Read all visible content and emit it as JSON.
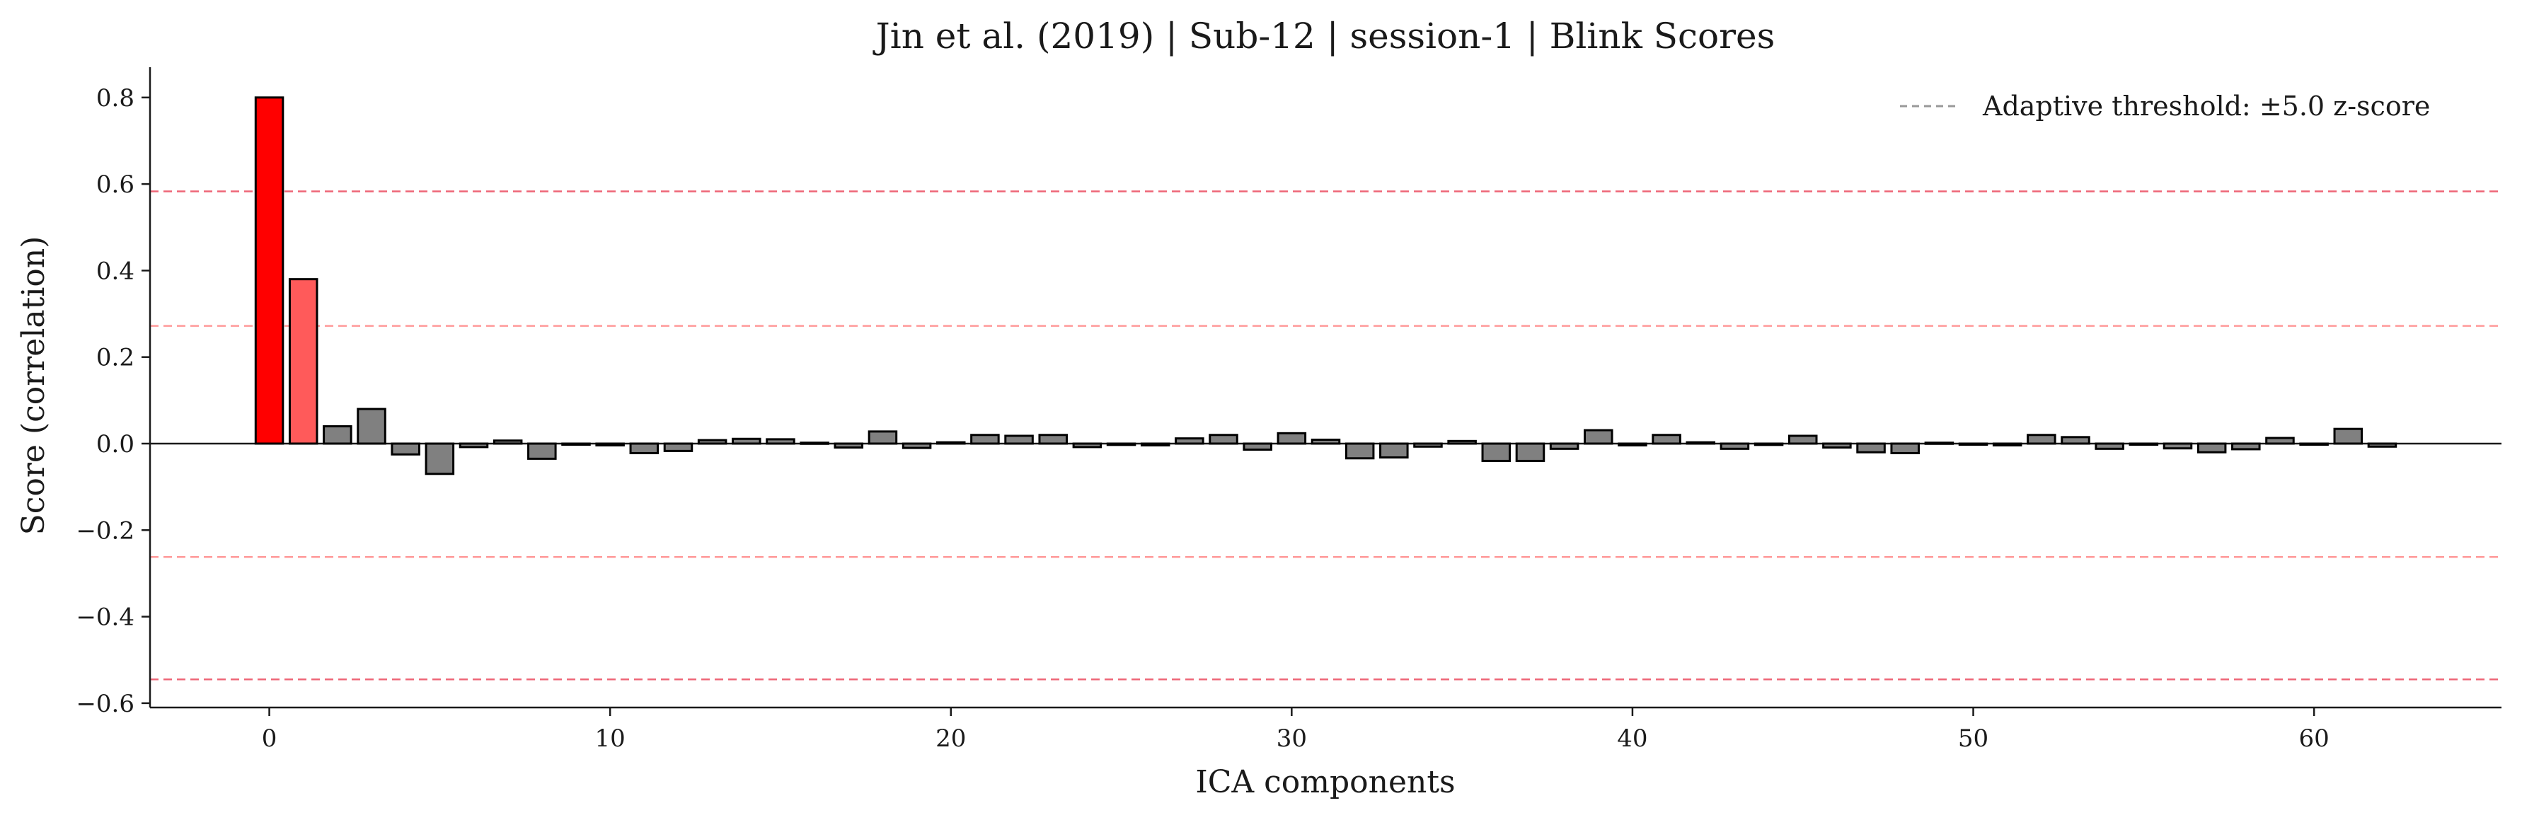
{
  "chart_data": {
    "type": "bar",
    "title": "Jin et al. (2019) | Sub-12 | session-1 | Blink Scores",
    "xlabel": "ICA components",
    "ylabel": "Score (correlation)",
    "xlim": [
      -3.5,
      65.5
    ],
    "ylim": [
      -0.61,
      0.87
    ],
    "xticks": [
      0,
      10,
      20,
      30,
      40,
      50,
      60
    ],
    "yticks": [
      -0.6,
      -0.4,
      -0.2,
      0.0,
      0.2,
      0.4,
      0.6,
      0.8
    ],
    "ytick_labels": [
      "−0.6",
      "−0.4",
      "−0.2",
      "0.0",
      "0.2",
      "0.4",
      "0.6",
      "0.8"
    ],
    "xtick_labels": [
      "0",
      "10",
      "20",
      "30",
      "40",
      "50",
      "60"
    ],
    "x": [
      0,
      1,
      2,
      3,
      4,
      5,
      6,
      7,
      8,
      9,
      10,
      11,
      12,
      13,
      14,
      15,
      16,
      17,
      18,
      19,
      20,
      21,
      22,
      23,
      24,
      25,
      26,
      27,
      28,
      29,
      30,
      31,
      32,
      33,
      34,
      35,
      36,
      37,
      38,
      39,
      40,
      41,
      42,
      43,
      44,
      45,
      46,
      47,
      48,
      49,
      50,
      51,
      52,
      53,
      54,
      55,
      56,
      57,
      58,
      59,
      60,
      61,
      62
    ],
    "values": [
      0.8,
      0.38,
      0.04,
      0.08,
      -0.025,
      -0.07,
      -0.008,
      0.007,
      -0.035,
      0.0,
      -0.004,
      -0.022,
      -0.017,
      0.008,
      0.011,
      0.01,
      0.002,
      -0.009,
      0.028,
      -0.01,
      0.003,
      0.02,
      0.018,
      0.02,
      -0.008,
      -0.003,
      -0.004,
      0.012,
      0.02,
      -0.014,
      0.024,
      0.009,
      -0.034,
      -0.032,
      -0.007,
      0.006,
      -0.04,
      -0.04,
      -0.012,
      0.031,
      -0.004,
      0.02,
      0.003,
      -0.012,
      -0.003,
      0.018,
      -0.009,
      -0.02,
      -0.022,
      0.002,
      0.0,
      -0.004,
      0.02,
      0.015,
      -0.012,
      0.0,
      -0.011,
      -0.02,
      -0.013,
      0.013,
      -0.002,
      0.034,
      -0.007
    ],
    "bar_colors": {
      "primary_flag": "#ff0000",
      "secondary_flag": "#ff5a5a",
      "normal": "#808080",
      "edge": "#000000"
    },
    "thresholds": {
      "outer": [
        0.583,
        -0.545
      ],
      "inner": [
        0.272,
        -0.262
      ],
      "outer_color": "#ee6677",
      "inner_color": "#ff9999"
    },
    "legend": {
      "label": "Adaptive threshold: ±5.0 z-score",
      "placement": "top-right",
      "line_color": "#999999"
    },
    "grid": false
  }
}
